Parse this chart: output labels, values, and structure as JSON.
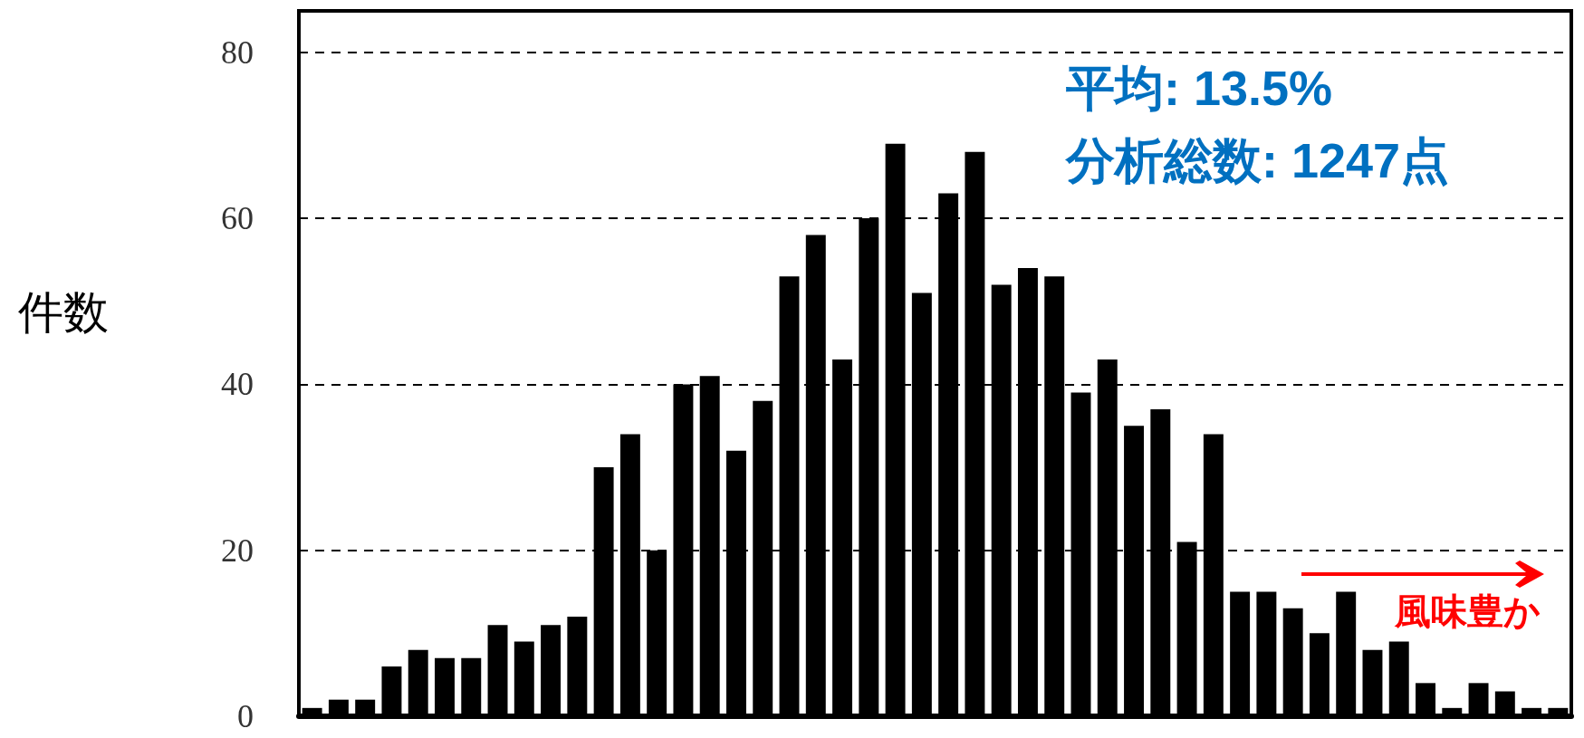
{
  "chart_data": {
    "type": "bar",
    "ylabel": "件数",
    "categories": [
      null,
      null,
      null,
      null,
      null,
      null,
      null,
      null,
      null,
      null,
      null,
      null,
      null,
      null,
      null,
      null,
      null,
      null,
      null,
      null,
      null,
      null,
      null,
      null,
      null,
      null,
      null,
      null,
      null,
      null,
      null,
      null,
      null,
      null,
      null,
      null,
      null,
      null,
      null,
      null,
      null,
      null,
      null,
      null,
      null,
      null,
      null,
      null
    ],
    "values": [
      1,
      2,
      2,
      6,
      8,
      7,
      7,
      11,
      9,
      11,
      12,
      30,
      34,
      20,
      40,
      41,
      32,
      38,
      53,
      58,
      43,
      60,
      69,
      51,
      63,
      68,
      52,
      54,
      53,
      39,
      43,
      35,
      37,
      21,
      34,
      15,
      15,
      13,
      10,
      15,
      8,
      9,
      4,
      1,
      4,
      3,
      1,
      1
    ],
    "color": "#000000",
    "ylim": [
      0,
      85
    ],
    "yticks": [
      0,
      20,
      40,
      60,
      80
    ],
    "grid": "y",
    "annotations": [
      "平均: 13.5%",
      "分析総数: 1247点",
      "風味豊か"
    ]
  }
}
